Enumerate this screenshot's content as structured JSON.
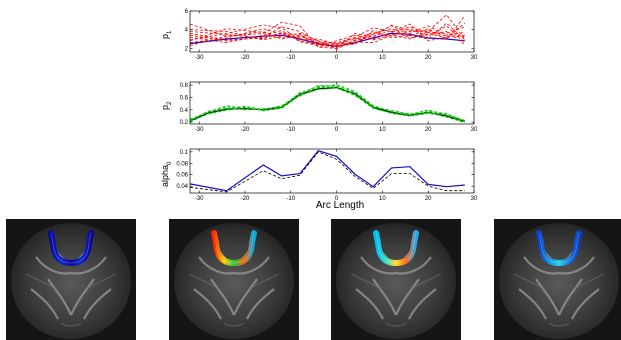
{
  "chart_data": [
    {
      "type": "line",
      "ylabel": "p",
      "ylabel_sub": "1",
      "xlim": [
        -32,
        30
      ],
      "ylim": [
        1.6,
        6
      ],
      "x_ticks": [
        -30,
        -20,
        -10,
        0,
        10,
        20,
        30
      ],
      "y_ticks": [
        2,
        4,
        6
      ],
      "x": [
        -32,
        -24,
        -16,
        -12,
        -8,
        -4,
        0,
        4,
        8,
        12,
        16,
        20,
        24,
        28
      ],
      "series": [
        {
          "style": "solid",
          "color": "#1010d0",
          "values": [
            2.5,
            3.0,
            3.3,
            3.4,
            3.0,
            2.5,
            2.2,
            2.6,
            3.1,
            3.6,
            3.5,
            3.1,
            3.0,
            2.8
          ]
        },
        {
          "style": "dashed",
          "color": "#ff0000",
          "values": [
            4.6,
            3.3,
            3.6,
            4.8,
            4.4,
            2.1,
            2.0,
            3.6,
            3.2,
            4.5,
            3.9,
            3.8,
            5.6,
            3.0
          ]
        },
        {
          "style": "dashed",
          "color": "#ff0000",
          "values": [
            2.9,
            3.6,
            4.5,
            4.2,
            2.9,
            3.0,
            2.4,
            3.2,
            4.2,
            3.8,
            4.6,
            2.8,
            3.2,
            3.3
          ]
        },
        {
          "style": "dashed",
          "color": "#ff0000",
          "values": [
            3.6,
            2.9,
            3.1,
            3.6,
            3.5,
            2.4,
            2.1,
            2.7,
            2.6,
            3.4,
            3.0,
            3.7,
            3.6,
            4.3
          ]
        },
        {
          "style": "dashed",
          "color": "#ff0000",
          "values": [
            2.3,
            3.3,
            3.8,
            3.1,
            3.3,
            2.6,
            2.5,
            2.5,
            3.6,
            4.1,
            3.3,
            4.1,
            2.9,
            5.5
          ]
        },
        {
          "style": "dashed",
          "color": "#ff0000",
          "values": [
            3.2,
            2.6,
            3.4,
            3.9,
            2.7,
            2.3,
            2.8,
            3.4,
            2.9,
            3.4,
            4.1,
            3.3,
            4.4,
            2.6
          ]
        },
        {
          "style": "dashed",
          "color": "#ff0000",
          "values": [
            4.0,
            3.8,
            2.9,
            3.3,
            3.6,
            2.8,
            1.9,
            2.9,
            3.5,
            4.4,
            3.6,
            4.4,
            3.4,
            3.7
          ]
        },
        {
          "style": "dashed",
          "color": "#ff0000",
          "values": [
            2.6,
            3.1,
            4.1,
            3.5,
            3.1,
            2.2,
            2.3,
            2.4,
            3.9,
            3.1,
            3.4,
            3.0,
            4.7,
            2.9
          ]
        },
        {
          "style": "dashed",
          "color": "#ff0000",
          "values": [
            3.4,
            2.8,
            3.2,
            4.3,
            3.8,
            2.7,
            2.6,
            3.1,
            3.0,
            3.7,
            4.3,
            3.6,
            3.1,
            4.7
          ]
        },
        {
          "style": "dashed",
          "color": "#ff0000",
          "values": [
            2.8,
            4.1,
            3.7,
            3.0,
            3.4,
            2.5,
            2.2,
            2.8,
            3.3,
            3.9,
            3.1,
            3.5,
            3.8,
            2.4
          ]
        },
        {
          "style": "dashed",
          "color": "#ff0000",
          "values": [
            3.8,
            3.5,
            3.0,
            3.7,
            2.8,
            2.4,
            2.4,
            3.0,
            3.7,
            3.3,
            3.8,
            3.9,
            3.3,
            3.4
          ]
        }
      ]
    },
    {
      "type": "line",
      "ylabel": "p",
      "ylabel_sub": "2",
      "xlim": [
        -32,
        30
      ],
      "ylim": [
        0.17,
        0.85
      ],
      "x_ticks": [
        -30,
        -20,
        -10,
        0,
        10,
        20,
        30
      ],
      "y_ticks": [
        0.2,
        0.4,
        0.6,
        0.8
      ],
      "x": [
        -32,
        -28,
        -24,
        -20,
        -16,
        -12,
        -8,
        -4,
        0,
        4,
        8,
        12,
        16,
        20,
        24,
        28
      ],
      "series": [
        {
          "style": "solid",
          "color": "#000000",
          "values": [
            0.22,
            0.35,
            0.41,
            0.42,
            0.4,
            0.44,
            0.65,
            0.74,
            0.76,
            0.66,
            0.44,
            0.36,
            0.31,
            0.36,
            0.3,
            0.21
          ]
        },
        {
          "style": "dashed",
          "color": "#00c800",
          "values": [
            0.24,
            0.37,
            0.45,
            0.43,
            0.41,
            0.46,
            0.67,
            0.78,
            0.79,
            0.69,
            0.46,
            0.38,
            0.33,
            0.39,
            0.33,
            0.22
          ]
        },
        {
          "style": "dashed",
          "color": "#00c800",
          "values": [
            0.21,
            0.33,
            0.39,
            0.44,
            0.39,
            0.42,
            0.63,
            0.73,
            0.75,
            0.64,
            0.42,
            0.35,
            0.3,
            0.34,
            0.29,
            0.2
          ]
        },
        {
          "style": "dashed",
          "color": "#00c800",
          "values": [
            0.23,
            0.36,
            0.47,
            0.41,
            0.42,
            0.45,
            0.66,
            0.76,
            0.77,
            0.67,
            0.45,
            0.37,
            0.32,
            0.4,
            0.31,
            0.21
          ]
        },
        {
          "style": "dashed",
          "color": "#00c800",
          "values": [
            0.2,
            0.34,
            0.4,
            0.45,
            0.38,
            0.43,
            0.64,
            0.8,
            0.78,
            0.65,
            0.43,
            0.34,
            0.3,
            0.35,
            0.32,
            0.23
          ]
        },
        {
          "style": "dashed",
          "color": "#00c800",
          "values": [
            0.25,
            0.36,
            0.43,
            0.4,
            0.41,
            0.44,
            0.68,
            0.75,
            0.81,
            0.7,
            0.47,
            0.37,
            0.31,
            0.37,
            0.34,
            0.22
          ]
        },
        {
          "style": "dashed",
          "color": "#00c800",
          "values": [
            0.22,
            0.38,
            0.42,
            0.46,
            0.4,
            0.47,
            0.62,
            0.77,
            0.76,
            0.63,
            0.44,
            0.39,
            0.33,
            0.36,
            0.28,
            0.19
          ]
        }
      ]
    },
    {
      "type": "line",
      "ylabel": "alpha",
      "ylabel_sub": "0",
      "xlabel": "Arc Length",
      "xlim": [
        -32,
        30
      ],
      "ylim": [
        0.028,
        0.105
      ],
      "x_ticks": [
        -30,
        -20,
        -10,
        0,
        10,
        20,
        30
      ],
      "y_ticks": [
        0.04,
        0.06,
        0.08,
        0.1
      ],
      "x": [
        -32,
        -24,
        -16,
        -12,
        -8,
        -4,
        0,
        4,
        8,
        12,
        16,
        20,
        24,
        28
      ],
      "series": [
        {
          "style": "solid",
          "color": "#1010d0",
          "values": [
            0.044,
            0.032,
            0.077,
            0.058,
            0.062,
            0.102,
            0.092,
            0.061,
            0.039,
            0.072,
            0.074,
            0.043,
            0.039,
            0.042
          ]
        },
        {
          "style": "dashed",
          "color": "#000000",
          "values": [
            0.038,
            0.03,
            0.067,
            0.053,
            0.059,
            0.1,
            0.087,
            0.057,
            0.036,
            0.062,
            0.062,
            0.04,
            0.032,
            0.032
          ]
        }
      ]
    }
  ],
  "images": [
    {
      "colormap": "blue"
    },
    {
      "colormap": "red-yellow-green"
    },
    {
      "colormap": "cyan-yellow-red"
    },
    {
      "colormap": "blue-cyan"
    }
  ]
}
